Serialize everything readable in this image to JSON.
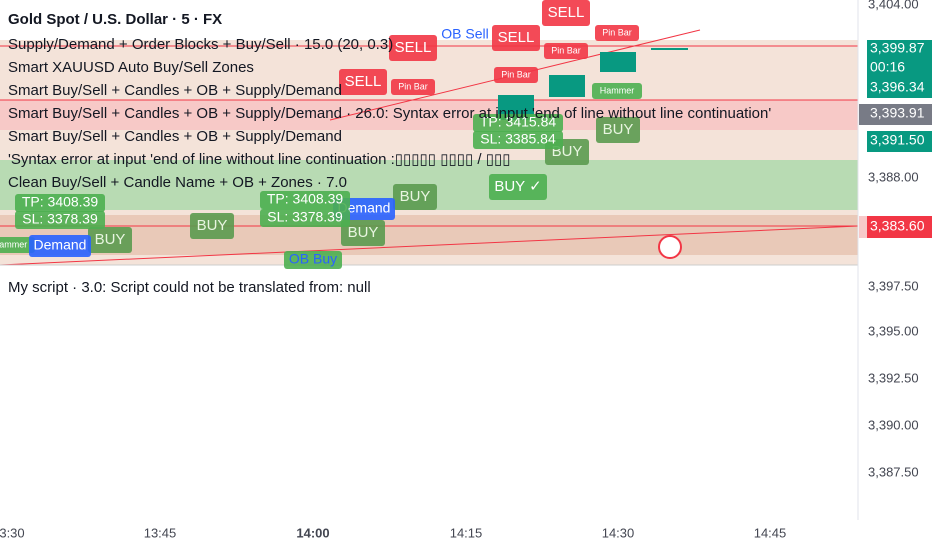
{
  "header": {
    "title": "Gold Spot / U.S. Dollar · 5 · FX",
    "indicators": [
      "Supply/Demand + Order Blocks + Buy/Sell · 15.0 (20, 0.3)",
      "Smart XAUUSD Auto Buy/Sell Zones",
      "Smart Buy/Sell + Candles + OB + Supply/Demand",
      "Smart Buy/Sell + Candles + OB + Supply/Demand · 26.0: Syntax error at input 'end of line without line continuation'",
      "Smart Buy/Sell + Candles + OB + Supply/Demand",
      "'Syntax error at input 'end of line without line continuation :▯▯▯▯▯ ▯▯▯▯ / ▯▯▯",
      "Clean Buy/Sell + Candle Name + OB + Zones · 7.0"
    ],
    "script_error": "My script · 3.0: Script could not be translated from: null"
  },
  "price_axis": {
    "top": [
      "3,404.00",
      "3,388.00"
    ],
    "lower": [
      "3,397.50",
      "3,395.00",
      "3,392.50",
      "3,390.00",
      "3,387.50"
    ],
    "badges": [
      "3,399.87",
      "00:16",
      "3,396.34",
      "3,393.91",
      "3,391.50",
      "3,383.60"
    ]
  },
  "time_axis": [
    "3:30",
    "13:45",
    "14:00",
    "14:15",
    "14:30",
    "14:45"
  ],
  "signals": [
    "SELL",
    "SELL",
    "SELL",
    "SELL",
    "Pin Bar",
    "Pin Bar",
    "Pin Bar",
    "Pin Bar",
    "OB Sell",
    "BUY",
    "BUY",
    "BUY",
    "BUY",
    "BUY",
    "BUY",
    "BUY ✓",
    "Hammer",
    "Hammer",
    "Demand",
    "Demand",
    "OB Buy",
    "TP: 3415.84",
    "SL: 3385.84",
    "TP: 3408.39",
    "SL: 3378.39",
    "TP: 3408.39",
    "SL: 3378.39"
  ]
}
